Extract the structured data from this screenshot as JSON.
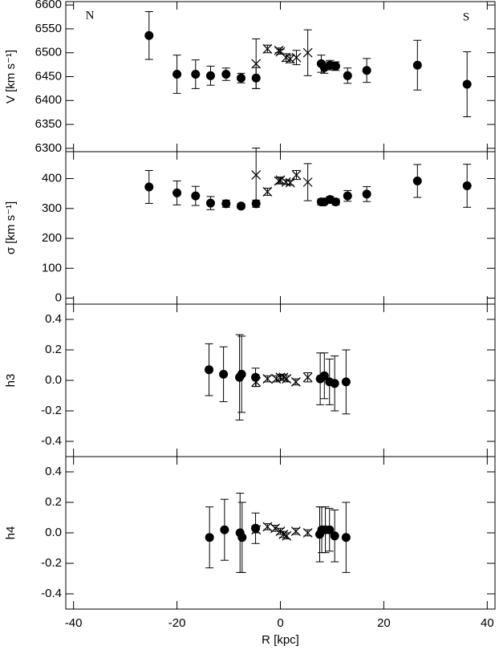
{
  "chart_data": [
    {
      "type": "errorbar",
      "ylabel": "V [km s⁻¹]",
      "annotations": [
        "N",
        "S"
      ],
      "xlim": [
        -41.5,
        41.5
      ],
      "xticks": [
        -40,
        -20,
        0,
        20,
        40
      ],
      "xtick_labels": false,
      "ylim": [
        6293,
        6607
      ],
      "yticks": [
        6300,
        6350,
        6400,
        6450,
        6500,
        6550,
        6600
      ],
      "series": [
        {
          "marker": "circle",
          "color": "#000000",
          "x": [
            -25.4,
            -20,
            -16.4,
            -13.5,
            -10.5,
            -7.6,
            -4.7,
            7.9,
            8.5,
            9.6,
            10.7,
            13,
            16.7,
            26.5,
            36.1
          ],
          "values": [
            6536,
            6455,
            6455,
            6452,
            6455,
            6447,
            6447,
            6477,
            6469,
            6474,
            6472,
            6452,
            6463,
            6474,
            6434
          ],
          "errors": [
            50,
            40,
            30,
            20,
            13,
            10,
            22,
            18,
            12,
            10,
            9,
            16,
            25,
            52,
            68
          ]
        },
        {
          "marker": "cross",
          "color": "#000000",
          "x": [
            -4.7,
            -2.5,
            -0.3,
            0,
            1.1,
            1.9,
            3.1,
            5.3
          ],
          "values": [
            6477,
            6508,
            6505,
            6502,
            6490,
            6487,
            6490,
            6500
          ],
          "errors": [
            52,
            8,
            5,
            5,
            8,
            8,
            15,
            48
          ]
        }
      ]
    },
    {
      "type": "errorbar",
      "ylabel": "σ [km s⁻¹]",
      "xlim": [
        -41.5,
        41.5
      ],
      "xticks": [
        -40,
        -20,
        0,
        20,
        40
      ],
      "xtick_labels": false,
      "ylim": [
        -20,
        490
      ],
      "yticks": [
        0,
        100,
        200,
        300,
        400
      ],
      "series": [
        {
          "marker": "circle",
          "color": "#000000",
          "x": [
            -25.4,
            -20,
            -16.4,
            -13.5,
            -10.5,
            -7.6,
            -4.7,
            7.9,
            8.5,
            9.6,
            10.7,
            13,
            16.7,
            26.5,
            36.1
          ],
          "values": [
            372,
            352,
            342,
            318,
            316,
            308,
            316,
            322,
            322,
            330,
            322,
            342,
            348,
            392,
            376
          ],
          "errors": [
            55,
            40,
            32,
            22,
            12,
            8,
            12,
            10,
            8,
            10,
            10,
            18,
            25,
            55,
            72
          ]
        },
        {
          "marker": "cross",
          "color": "#000000",
          "x": [
            -4.7,
            -2.5,
            -0.3,
            0,
            1.1,
            1.9,
            3.1,
            5.3
          ],
          "values": [
            412,
            356,
            392,
            395,
            388,
            386,
            412,
            388
          ],
          "errors": [
            90,
            12,
            10,
            10,
            8,
            8,
            15,
            62
          ]
        }
      ]
    },
    {
      "type": "errorbar",
      "ylabel": "h3",
      "xlim": [
        -41.5,
        41.5
      ],
      "xticks": [
        -40,
        -20,
        0,
        20,
        40
      ],
      "xtick_labels": false,
      "ylim": [
        -0.5,
        0.5
      ],
      "yticks": [
        -0.4,
        -0.2,
        {
          "value": 0,
          "label": "0.0"
        },
        0.2,
        0.4
      ],
      "series": [
        {
          "marker": "circle",
          "color": "#000000",
          "x": [
            -13.8,
            -11,
            -7.9,
            -7.5,
            -4.8,
            7.7,
            8.5,
            9.5,
            10.5,
            12.7
          ],
          "values": [
            0.07,
            0.04,
            0.02,
            0.04,
            0.02,
            0.01,
            0.03,
            -0.01,
            -0.02,
            -0.01
          ],
          "errors": [
            0.17,
            0.18,
            0.28,
            0.25,
            0.06,
            0.17,
            0.15,
            0.15,
            0.18,
            0.21
          ]
        },
        {
          "marker": "cross",
          "color": "#000000",
          "x": [
            -4.7,
            -2.5,
            -0.8,
            0,
            0.6,
            1.2,
            3,
            5.3
          ],
          "values": [
            -0.01,
            0.01,
            0.01,
            0.02,
            0.02,
            0.01,
            -0.01,
            0.02
          ],
          "errors": [
            0.03,
            0.02,
            0.02,
            0.02,
            0.02,
            0.02,
            0.02,
            0.03
          ]
        }
      ]
    },
    {
      "type": "errorbar",
      "ylabel": "h4",
      "xlabel": "R [kpc]",
      "xlim": [
        -41.5,
        41.5
      ],
      "xticks": [
        -40,
        -20,
        0,
        20,
        40
      ],
      "xtick_labels": true,
      "ylim": [
        -0.5,
        0.5
      ],
      "yticks": [
        -0.4,
        -0.2,
        {
          "value": 0,
          "label": "0.0"
        },
        0.2,
        0.4
      ],
      "series": [
        {
          "marker": "circle",
          "color": "#000000",
          "x": [
            -13.7,
            -10.8,
            -7.8,
            -7.4,
            -4.8,
            7.6,
            8,
            8.7,
            9.5,
            10.5,
            12.7
          ],
          "values": [
            -0.03,
            0.02,
            0,
            -0.03,
            0.03,
            -0.01,
            0.02,
            0.02,
            0.02,
            -0.02,
            -0.03
          ],
          "errors": [
            0.2,
            0.2,
            0.26,
            0.23,
            0.1,
            0.18,
            0.15,
            0.15,
            0.14,
            0.17,
            0.23
          ]
        },
        {
          "marker": "cross",
          "color": "#000000",
          "x": [
            -4.7,
            -2.5,
            -1,
            0,
            0.6,
            1.2,
            3,
            5.3
          ],
          "values": [
            0.02,
            0.04,
            0.03,
            0.01,
            -0.01,
            -0.02,
            0.01,
            0
          ],
          "errors": [
            0.02,
            0.02,
            0.02,
            0.02,
            0.02,
            0.02,
            0.02,
            0.02
          ]
        }
      ]
    }
  ]
}
